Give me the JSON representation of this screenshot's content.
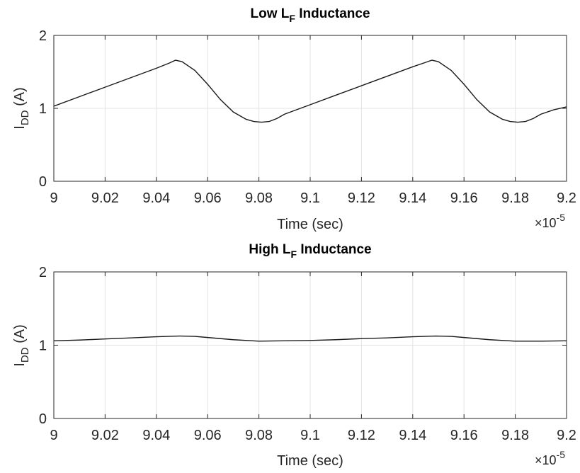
{
  "chart_data": [
    {
      "type": "line",
      "title": {
        "main": "Low L",
        "sub": "F",
        "rest": " Inductance"
      },
      "xlabel": "Time (sec)",
      "ylabel": {
        "main": "I",
        "sub": "DD",
        "rest": " (A)"
      },
      "x_exponent": {
        "base": "×10",
        "power": "-5"
      },
      "xlim": [
        9.0,
        9.2
      ],
      "ylim": [
        0,
        2
      ],
      "xticks": [
        "9",
        "9.02",
        "9.04",
        "9.06",
        "9.08",
        "9.1",
        "9.12",
        "9.14",
        "9.16",
        "9.18",
        "9.2"
      ],
      "yticks": [
        "0",
        "1",
        "2"
      ],
      "grid": true,
      "series": [
        {
          "x": [
            9.0,
            9.01,
            9.02,
            9.03,
            9.04,
            9.045,
            9.0475,
            9.05,
            9.055,
            9.06,
            9.065,
            9.07,
            9.075,
            9.078,
            9.081,
            9.084,
            9.087,
            9.09,
            9.1,
            9.11,
            9.12,
            9.13,
            9.14,
            9.145,
            9.1475,
            9.15,
            9.155,
            9.16,
            9.165,
            9.17,
            9.175,
            9.178,
            9.181,
            9.184,
            9.187,
            9.19,
            9.195,
            9.2
          ],
          "y": [
            1.03,
            1.16,
            1.29,
            1.42,
            1.55,
            1.62,
            1.66,
            1.64,
            1.52,
            1.33,
            1.12,
            0.95,
            0.85,
            0.82,
            0.81,
            0.82,
            0.86,
            0.92,
            1.05,
            1.18,
            1.31,
            1.44,
            1.57,
            1.63,
            1.66,
            1.64,
            1.52,
            1.33,
            1.12,
            0.95,
            0.85,
            0.82,
            0.81,
            0.82,
            0.86,
            0.92,
            0.98,
            1.02
          ]
        }
      ]
    },
    {
      "type": "line",
      "title": {
        "main": "High L",
        "sub": "F",
        "rest": " Inductance"
      },
      "xlabel": "Time (sec)",
      "ylabel": {
        "main": "I",
        "sub": "DD",
        "rest": " (A)"
      },
      "x_exponent": {
        "base": "×10",
        "power": "-5"
      },
      "xlim": [
        9.0,
        9.2
      ],
      "ylim": [
        0,
        2
      ],
      "xticks": [
        "9",
        "9.02",
        "9.04",
        "9.06",
        "9.08",
        "9.1",
        "9.12",
        "9.14",
        "9.16",
        "9.18",
        "9.2"
      ],
      "yticks": [
        "0",
        "1",
        "2"
      ],
      "grid": true,
      "series": [
        {
          "x": [
            9.0,
            9.01,
            9.02,
            9.03,
            9.04,
            9.049,
            9.055,
            9.06,
            9.07,
            9.08,
            9.09,
            9.1,
            9.11,
            9.12,
            9.13,
            9.14,
            9.149,
            9.155,
            9.16,
            9.17,
            9.18,
            9.19,
            9.2
          ],
          "y": [
            1.06,
            1.07,
            1.085,
            1.1,
            1.115,
            1.125,
            1.12,
            1.105,
            1.075,
            1.055,
            1.06,
            1.065,
            1.075,
            1.09,
            1.1,
            1.115,
            1.125,
            1.12,
            1.105,
            1.075,
            1.055,
            1.055,
            1.06
          ]
        }
      ]
    }
  ]
}
